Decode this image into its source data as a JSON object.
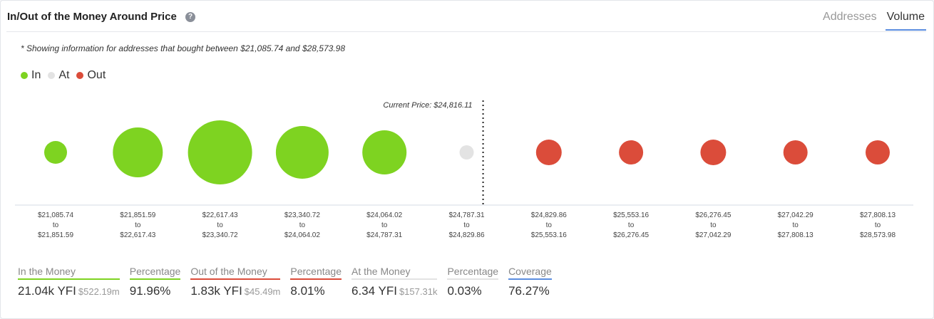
{
  "header": {
    "title": "In/Out of the Money Around Price",
    "help_glyph": "?",
    "tabs": [
      {
        "label": "Addresses",
        "active": false
      },
      {
        "label": "Volume",
        "active": true
      }
    ]
  },
  "note": "* Showing information for addresses that bought between $21,085.74 and $28,573.98",
  "legend": [
    {
      "label": "In",
      "color": "#7ed321"
    },
    {
      "label": "At",
      "color": "#e3e3e3"
    },
    {
      "label": "Out",
      "color": "#db4c3a"
    }
  ],
  "chart_data": {
    "type": "scatter",
    "current_price_label": "Current Price: $24,816.11",
    "current_price_index": 5.2,
    "colors": {
      "in": "#7ed321",
      "at": "#e3e3e3",
      "out": "#db4c3a"
    },
    "buckets": [
      {
        "from": "$21,085.74",
        "to_word": "to",
        "to": "$21,851.59",
        "status": "in",
        "size": 16
      },
      {
        "from": "$21,851.59",
        "to_word": "to",
        "to": "$22,617.43",
        "status": "in",
        "size": 35
      },
      {
        "from": "$22,617.43",
        "to_word": "to",
        "to": "$23,340.72",
        "status": "in",
        "size": 45
      },
      {
        "from": "$23,340.72",
        "to_word": "to",
        "to": "$24,064.02",
        "status": "in",
        "size": 37
      },
      {
        "from": "$24,064.02",
        "to_word": "to",
        "to": "$24,787.31",
        "status": "in",
        "size": 31
      },
      {
        "from": "$24,787.31",
        "to_word": "to",
        "to": "$24,829.86",
        "status": "at",
        "size": 10
      },
      {
        "from": "$24,829.86",
        "to_word": "to",
        "to": "$25,553.16",
        "status": "out",
        "size": 18
      },
      {
        "from": "$25,553.16",
        "to_word": "to",
        "to": "$26,276.45",
        "status": "out",
        "size": 17
      },
      {
        "from": "$26,276.45",
        "to_word": "to",
        "to": "$27,042.29",
        "status": "out",
        "size": 18
      },
      {
        "from": "$27,042.29",
        "to_word": "to",
        "to": "$27,808.13",
        "status": "out",
        "size": 17
      },
      {
        "from": "$27,808.13",
        "to_word": "to",
        "to": "$28,573.98",
        "status": "out",
        "size": 17
      }
    ]
  },
  "stats": [
    {
      "heading": "In the Money",
      "value": "21.04k YFI",
      "sub": "$522.19m",
      "underline": "#7ed321"
    },
    {
      "heading": "Percentage",
      "value": "91.96%",
      "sub": "",
      "underline": "#7ed321"
    },
    {
      "heading": "Out of the Money",
      "value": "1.83k YFI",
      "sub": "$45.49m",
      "underline": "#db4c3a"
    },
    {
      "heading": "Percentage",
      "value": "8.01%",
      "sub": "",
      "underline": "#db4c3a"
    },
    {
      "heading": "At the Money",
      "value": "6.34 YFI",
      "sub": "$157.31k",
      "underline": "#e3e3e3"
    },
    {
      "heading": "Percentage",
      "value": "0.03%",
      "sub": "",
      "underline": "#e3e3e3"
    },
    {
      "heading": "Coverage",
      "value": "76.27%",
      "sub": "",
      "underline": "#5a8de0"
    }
  ]
}
